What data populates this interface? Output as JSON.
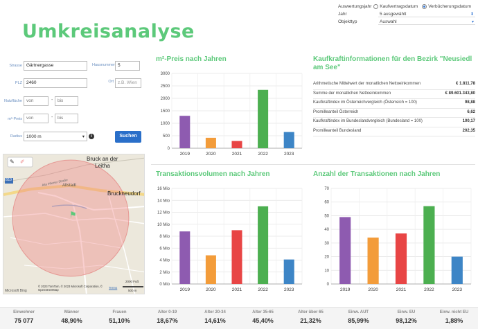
{
  "page": {
    "title": "Umkreisanalyse"
  },
  "filters": {
    "auswertungsjahr_label": "Auswertungsjahr",
    "radio_1": "Kaufvertragsdatum",
    "radio_2": "Verbücherungsdatum",
    "jahr_label": "Jahr",
    "jahr_value": "5 ausgewählt",
    "objekttyp_label": "Objekttyp",
    "objekttyp_value": "Auswahl",
    "selected_radio": 2
  },
  "form": {
    "strasse_label": "Strasse",
    "strasse_value": "Gärtnergasse",
    "hausnummer_label": "Hausnummer",
    "hausnummer_value": "5",
    "plz_label": "PLZ",
    "plz_value": "2460",
    "ort_label": "Ort",
    "ort_placeholder": "z.B. Wien",
    "nutzflaeche_label": "Nutzfläche",
    "von_placeholder": "von",
    "bis_placeholder": "bis",
    "m2preis_label": "m²-Preis",
    "radius_label": "Radius",
    "radius_value": "1000 m",
    "search_button": "Suchen",
    "info_glyph": "i"
  },
  "map": {
    "label_town_1": "Bruck an der",
    "label_town_2": "Leitha",
    "label_bruckneudorf": "Bruckneudorf",
    "label_altstadt": "Altstadt",
    "label_road": "Alte Wiener Straße",
    "label_b10": "B10",
    "attribution": "© 2023 TomTom, © 2023 Microsoft Corporation, © OpenStreetMap",
    "terms": "Terms",
    "brand": "Microsoft Bing",
    "scale_ft": "2000 Fuß",
    "scale_m": "500 m"
  },
  "kpi": {
    "title": "Kaufkraftinformationen für den Bezirk \"Neusiedl am See\"",
    "rows": [
      {
        "label": "Arithmetische Mittelwert der monatlichen Nettoeinkommen",
        "value": "€ 1.811,78"
      },
      {
        "label": "Summe der monatlichen Nettoeinkommen",
        "value": "€ 89.601.343,80"
      },
      {
        "label": "Kaufkraftindex im Österreichvergleich (Österreich = 100)",
        "value": "98,88"
      },
      {
        "label": "Promilleanteil Österreich",
        "value": "6,62"
      },
      {
        "label": "Kaufkraftindex im Bundeslandvergleich (Bundesland = 100)",
        "value": "100,17"
      },
      {
        "label": "Promilleanteil Bundesland",
        "value": "202,35"
      }
    ]
  },
  "stats": [
    {
      "label": "Einwohner",
      "value": "75 077"
    },
    {
      "label": "Männer",
      "value": "48,90%"
    },
    {
      "label": "Frauen",
      "value": "51,10%"
    },
    {
      "label": "Alter 0-19",
      "value": "18,67%"
    },
    {
      "label": "Alter 20-34",
      "value": "14,61%"
    },
    {
      "label": "Alter 35-65",
      "value": "45,40%"
    },
    {
      "label": "Alter über 65",
      "value": "21,32%"
    },
    {
      "label": "Einw. AUT",
      "value": "85,99%"
    },
    {
      "label": "Einw. EU",
      "value": "98,12%"
    },
    {
      "label": "Einw. nicht EU",
      "value": "1,88%"
    }
  ],
  "chart_data": [
    {
      "id": "m2",
      "type": "bar",
      "title": "m²-Preis nach Jahren",
      "categories": [
        "2019",
        "2020",
        "2021",
        "2022",
        "2023"
      ],
      "values": [
        1300,
        420,
        290,
        2340,
        650
      ],
      "colors": [
        "#8e5bb0",
        "#f39c3a",
        "#e84545",
        "#4caf50",
        "#3d85c6"
      ],
      "ylim": [
        0,
        3000
      ],
      "yticks": [
        "0",
        "500",
        "1000",
        "1500",
        "2000",
        "2500",
        "3000"
      ],
      "ytick_values": [
        0,
        500,
        1000,
        1500,
        2000,
        2500,
        3000
      ],
      "grid": true
    },
    {
      "id": "vol",
      "type": "bar",
      "title": "Transaktionsvolumen nach Jahren",
      "categories": [
        "2019",
        "2020",
        "2021",
        "2022",
        "2023"
      ],
      "values": [
        8.8,
        4.8,
        9.0,
        13.0,
        4.1
      ],
      "colors": [
        "#8e5bb0",
        "#f39c3a",
        "#e84545",
        "#4caf50",
        "#3d85c6"
      ],
      "ylim": [
        0,
        16
      ],
      "yticks": [
        "0 Mio",
        "2 Mio",
        "4 Mio",
        "6 Mio",
        "8 Mio",
        "10 Mio",
        "12 Mio",
        "14 Mio",
        "16 Mio"
      ],
      "ytick_values": [
        0,
        2,
        4,
        6,
        8,
        10,
        12,
        14,
        16
      ],
      "grid": true
    },
    {
      "id": "cnt",
      "type": "bar",
      "title": "Anzahl der Transaktionen nach Jahren",
      "categories": [
        "2019",
        "2020",
        "2021",
        "2022",
        "2023"
      ],
      "values": [
        49,
        34,
        37,
        57,
        20
      ],
      "colors": [
        "#8e5bb0",
        "#f39c3a",
        "#e84545",
        "#4caf50",
        "#3d85c6"
      ],
      "ylim": [
        0,
        70
      ],
      "yticks": [
        "0",
        "10",
        "20",
        "30",
        "40",
        "50",
        "60",
        "70"
      ],
      "ytick_values": [
        0,
        10,
        20,
        30,
        40,
        50,
        60,
        70
      ],
      "grid": true
    }
  ]
}
